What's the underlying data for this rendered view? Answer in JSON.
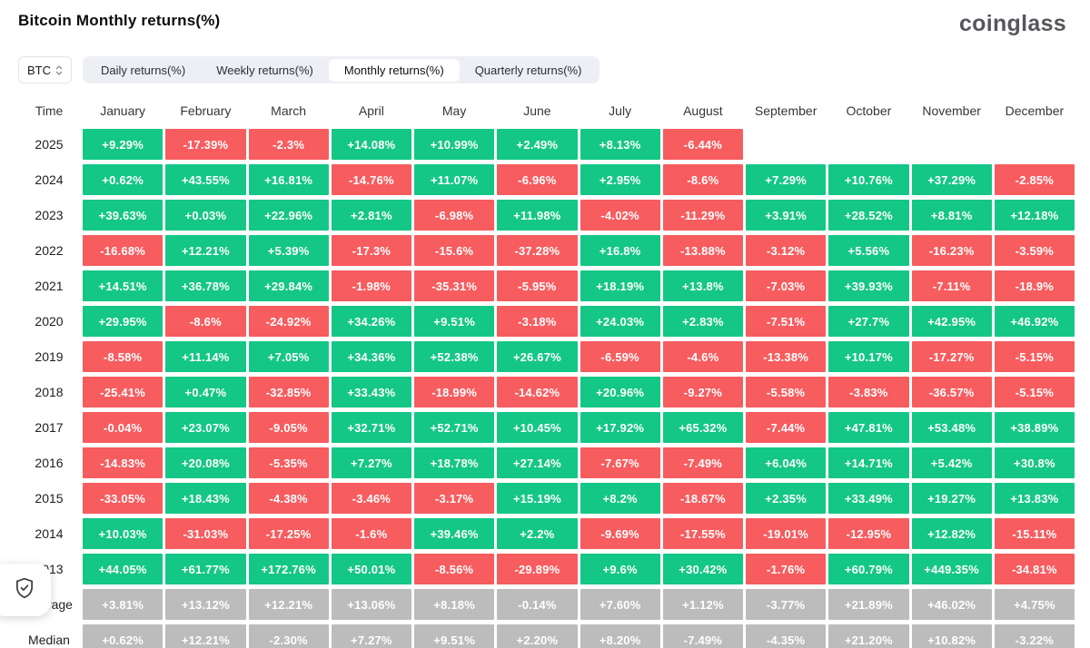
{
  "page": {
    "title": "Bitcoin Monthly returns(%)",
    "logo": "coinglass"
  },
  "controls": {
    "symbol": "BTC",
    "tabs": [
      {
        "label": "Daily returns(%)",
        "active": false
      },
      {
        "label": "Weekly returns(%)",
        "active": false
      },
      {
        "label": "Monthly returns(%)",
        "active": true
      },
      {
        "label": "Quarterly returns(%)",
        "active": false
      }
    ]
  },
  "chart_data": {
    "type": "heatmap",
    "title": "Bitcoin Monthly returns(%)",
    "columns": [
      "Time",
      "January",
      "February",
      "March",
      "April",
      "May",
      "June",
      "July",
      "August",
      "September",
      "October",
      "November",
      "December"
    ],
    "colors": {
      "positive": "#14c786",
      "negative": "#f75c5f",
      "neutral": "#bcbcbc"
    },
    "rows": [
      {
        "label": "2025",
        "neutral": false,
        "values": [
          "+9.29%",
          "-17.39%",
          "-2.3%",
          "+14.08%",
          "+10.99%",
          "+2.49%",
          "+8.13%",
          "-6.44%",
          "",
          "",
          "",
          ""
        ]
      },
      {
        "label": "2024",
        "neutral": false,
        "values": [
          "+0.62%",
          "+43.55%",
          "+16.81%",
          "-14.76%",
          "+11.07%",
          "-6.96%",
          "+2.95%",
          "-8.6%",
          "+7.29%",
          "+10.76%",
          "+37.29%",
          "-2.85%"
        ]
      },
      {
        "label": "2023",
        "neutral": false,
        "values": [
          "+39.63%",
          "+0.03%",
          "+22.96%",
          "+2.81%",
          "-6.98%",
          "+11.98%",
          "-4.02%",
          "-11.29%",
          "+3.91%",
          "+28.52%",
          "+8.81%",
          "+12.18%"
        ]
      },
      {
        "label": "2022",
        "neutral": false,
        "values": [
          "-16.68%",
          "+12.21%",
          "+5.39%",
          "-17.3%",
          "-15.6%",
          "-37.28%",
          "+16.8%",
          "-13.88%",
          "-3.12%",
          "+5.56%",
          "-16.23%",
          "-3.59%"
        ]
      },
      {
        "label": "2021",
        "neutral": false,
        "values": [
          "+14.51%",
          "+36.78%",
          "+29.84%",
          "-1.98%",
          "-35.31%",
          "-5.95%",
          "+18.19%",
          "+13.8%",
          "-7.03%",
          "+39.93%",
          "-7.11%",
          "-18.9%"
        ]
      },
      {
        "label": "2020",
        "neutral": false,
        "values": [
          "+29.95%",
          "-8.6%",
          "-24.92%",
          "+34.26%",
          "+9.51%",
          "-3.18%",
          "+24.03%",
          "+2.83%",
          "-7.51%",
          "+27.7%",
          "+42.95%",
          "+46.92%"
        ]
      },
      {
        "label": "2019",
        "neutral": false,
        "values": [
          "-8.58%",
          "+11.14%",
          "+7.05%",
          "+34.36%",
          "+52.38%",
          "+26.67%",
          "-6.59%",
          "-4.6%",
          "-13.38%",
          "+10.17%",
          "-17.27%",
          "-5.15%"
        ]
      },
      {
        "label": "2018",
        "neutral": false,
        "values": [
          "-25.41%",
          "+0.47%",
          "-32.85%",
          "+33.43%",
          "-18.99%",
          "-14.62%",
          "+20.96%",
          "-9.27%",
          "-5.58%",
          "-3.83%",
          "-36.57%",
          "-5.15%"
        ]
      },
      {
        "label": "2017",
        "neutral": false,
        "values": [
          "-0.04%",
          "+23.07%",
          "-9.05%",
          "+32.71%",
          "+52.71%",
          "+10.45%",
          "+17.92%",
          "+65.32%",
          "-7.44%",
          "+47.81%",
          "+53.48%",
          "+38.89%"
        ]
      },
      {
        "label": "2016",
        "neutral": false,
        "values": [
          "-14.83%",
          "+20.08%",
          "-5.35%",
          "+7.27%",
          "+18.78%",
          "+27.14%",
          "-7.67%",
          "-7.49%",
          "+6.04%",
          "+14.71%",
          "+5.42%",
          "+30.8%"
        ]
      },
      {
        "label": "2015",
        "neutral": false,
        "values": [
          "-33.05%",
          "+18.43%",
          "-4.38%",
          "-3.46%",
          "-3.17%",
          "+15.19%",
          "+8.2%",
          "-18.67%",
          "+2.35%",
          "+33.49%",
          "+19.27%",
          "+13.83%"
        ]
      },
      {
        "label": "2014",
        "neutral": false,
        "values": [
          "+10.03%",
          "-31.03%",
          "-17.25%",
          "-1.6%",
          "+39.46%",
          "+2.2%",
          "-9.69%",
          "-17.55%",
          "-19.01%",
          "-12.95%",
          "+12.82%",
          "-15.11%"
        ]
      },
      {
        "label": "2013",
        "neutral": false,
        "values": [
          "+44.05%",
          "+61.77%",
          "+172.76%",
          "+50.01%",
          "-8.56%",
          "-29.89%",
          "+9.6%",
          "+30.42%",
          "-1.76%",
          "+60.79%",
          "+449.35%",
          "-34.81%"
        ]
      },
      {
        "label": "Average",
        "neutral": true,
        "values": [
          "+3.81%",
          "+13.12%",
          "+12.21%",
          "+13.06%",
          "+8.18%",
          "-0.14%",
          "+7.60%",
          "+1.12%",
          "-3.77%",
          "+21.89%",
          "+46.02%",
          "+4.75%"
        ]
      },
      {
        "label": "Median",
        "neutral": true,
        "values": [
          "+0.62%",
          "+12.21%",
          "-2.30%",
          "+7.27%",
          "+9.51%",
          "+2.20%",
          "+8.20%",
          "-7.49%",
          "-4.35%",
          "+21.20%",
          "+10.82%",
          "-3.22%"
        ]
      }
    ]
  },
  "badge": {
    "icon": "shield-check-icon"
  }
}
